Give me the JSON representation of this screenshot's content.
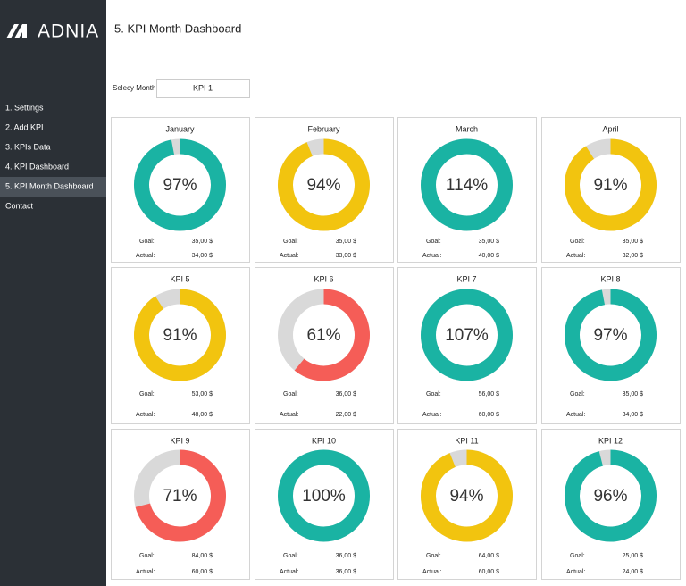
{
  "logo": "ADNIA",
  "header": {
    "title": "5. KPI Month Dashboard"
  },
  "menu": [
    {
      "label": "1. Settings",
      "active": false
    },
    {
      "label": "2. Add KPI",
      "active": false
    },
    {
      "label": "3. KPIs Data",
      "active": false
    },
    {
      "label": "4. KPI Dashboard",
      "active": false
    },
    {
      "label": "5. KPI Month Dashboard",
      "active": true
    },
    {
      "label": "Contact",
      "active": false
    }
  ],
  "selector": {
    "label": "Selecy Month:",
    "value": "KPI 1"
  },
  "kpis": [
    {
      "title": "January",
      "percent": 97,
      "percent_label": "97%",
      "color": "#1ab3a3",
      "goal_label": "Goal:",
      "goal": "35,00 $",
      "actual_label": "Actual:",
      "actual": "34,00 $"
    },
    {
      "title": "February",
      "percent": 94,
      "percent_label": "94%",
      "color": "#f2c40f",
      "goal_label": "Goal:",
      "goal": "35,00 $",
      "actual_label": "Actual:",
      "actual": "33,00 $"
    },
    {
      "title": "March",
      "percent": 114,
      "percent_label": "114%",
      "color": "#1ab3a3",
      "goal_label": "Goal:",
      "goal": "35,00 $",
      "actual_label": "Actual:",
      "actual": "40,00 $"
    },
    {
      "title": "April",
      "percent": 91,
      "percent_label": "91%",
      "color": "#f2c40f",
      "goal_label": "Goal:",
      "goal": "35,00 $",
      "actual_label": "Actual:",
      "actual": "32,00 $"
    },
    {
      "title": "KPI 5",
      "percent": 91,
      "percent_label": "91%",
      "color": "#f2c40f",
      "goal_label": "Goal:",
      "goal": "53,00 $",
      "actual_label": "Actual:",
      "actual": "48,00 $"
    },
    {
      "title": "KPI 6",
      "percent": 61,
      "percent_label": "61%",
      "color": "#f55d57",
      "goal_label": "Goal:",
      "goal": "36,00 $",
      "actual_label": "Actual:",
      "actual": "22,00 $"
    },
    {
      "title": "KPI 7",
      "percent": 107,
      "percent_label": "107%",
      "color": "#1ab3a3",
      "goal_label": "Goal:",
      "goal": "56,00 $",
      "actual_label": "Actual:",
      "actual": "60,00 $"
    },
    {
      "title": "KPI 8",
      "percent": 97,
      "percent_label": "97%",
      "color": "#1ab3a3",
      "goal_label": "Goal:",
      "goal": "35,00 $",
      "actual_label": "Actual:",
      "actual": "34,00 $"
    },
    {
      "title": "KPI 9",
      "percent": 71,
      "percent_label": "71%",
      "color": "#f55d57",
      "goal_label": "Goal:",
      "goal": "84,00 $",
      "actual_label": "Actual:",
      "actual": "60,00 $"
    },
    {
      "title": "KPI 10",
      "percent": 100,
      "percent_label": "100%",
      "color": "#1ab3a3",
      "goal_label": "Goal:",
      "goal": "36,00 $",
      "actual_label": "Actual:",
      "actual": "36,00 $"
    },
    {
      "title": "KPI 11",
      "percent": 94,
      "percent_label": "94%",
      "color": "#f2c40f",
      "goal_label": "Goal:",
      "goal": "64,00 $",
      "actual_label": "Actual:",
      "actual": "60,00 $"
    },
    {
      "title": "KPI 12",
      "percent": 96,
      "percent_label": "96%",
      "color": "#1ab3a3",
      "goal_label": "Goal:",
      "goal": "25,00 $",
      "actual_label": "Actual:",
      "actual": "24,00 $"
    }
  ]
}
